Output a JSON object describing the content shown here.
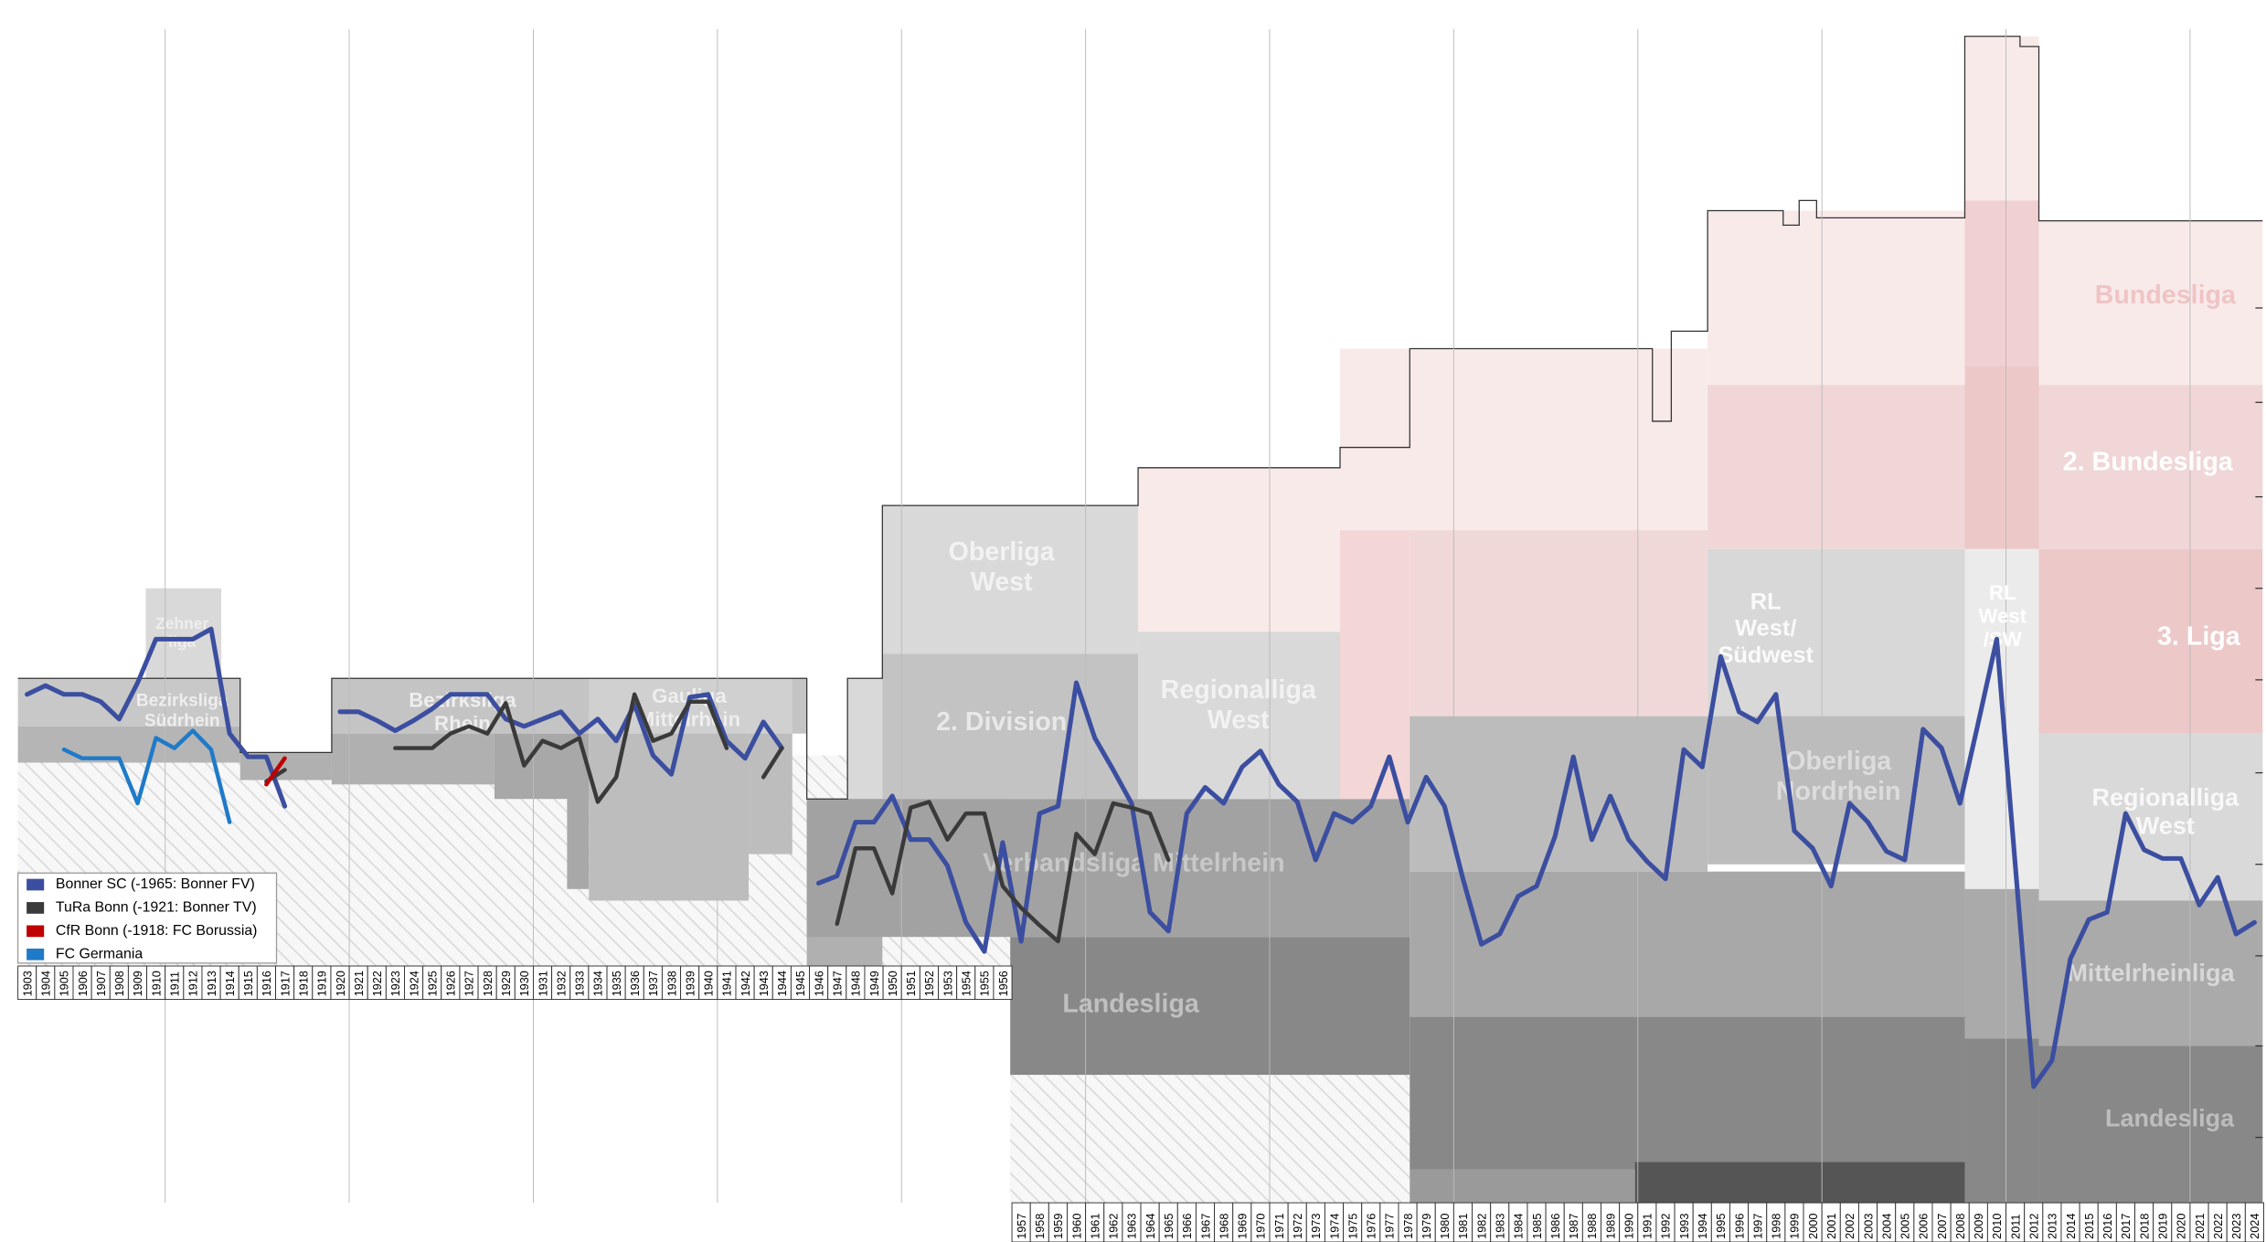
{
  "chart_data": {
    "type": "line",
    "categories": [
      "1903",
      "1904",
      "1905",
      "1906",
      "1907",
      "1908",
      "1909",
      "1910",
      "1911",
      "1912",
      "1913",
      "1914",
      "1915",
      "1916",
      "1917",
      "1918",
      "1919",
      "1920",
      "1921",
      "1922",
      "1923",
      "1924",
      "1925",
      "1926",
      "1927",
      "1928",
      "1929",
      "1930",
      "1931",
      "1932",
      "1933",
      "1934",
      "1935",
      "1936",
      "1937",
      "1938",
      "1939",
      "1940",
      "1941",
      "1942",
      "1943",
      "1944",
      "1945",
      "1946",
      "1947",
      "1948",
      "1949",
      "1950",
      "1951",
      "1952",
      "1953",
      "1954",
      "1955",
      "1956",
      "1957",
      "1958",
      "1959",
      "1960",
      "1961",
      "1962",
      "1963",
      "1964",
      "1965",
      "1966",
      "1967",
      "1968",
      "1969",
      "1970",
      "1971",
      "1972",
      "1973",
      "1974",
      "1975",
      "1976",
      "1977",
      "1978",
      "1979",
      "1980",
      "1981",
      "1982",
      "1983",
      "1984",
      "1985",
      "1986",
      "1987",
      "1988",
      "1989",
      "1990",
      "1991",
      "1992",
      "1993",
      "1994",
      "1995",
      "1996",
      "1997",
      "1998",
      "1999",
      "2000",
      "2001",
      "2002",
      "2003",
      "2004",
      "2005",
      "2006",
      "2007",
      "2008",
      "2009",
      "2010",
      "2011",
      "2012",
      "2013",
      "2014",
      "2015",
      "2016",
      "2017",
      "2018",
      "2019",
      "2020",
      "2021",
      "2022",
      "2023",
      "2024"
    ],
    "ylim": [
      855,
      0
    ],
    "yticks": [
      212,
      277,
      342,
      405,
      468,
      532,
      595,
      658,
      720,
      783
    ],
    "series": [
      {
        "name": "Bonner SC (-1965: Bonner FV)",
        "color": "#3b4ea0",
        "values": [
          478,
          472,
          478,
          478,
          483,
          495,
          470,
          440,
          440,
          440,
          433,
          505,
          521,
          521,
          555,
          null,
          null,
          490,
          490,
          496,
          503,
          496,
          488,
          478,
          478,
          478,
          495,
          500,
          495,
          490,
          505,
          495,
          510,
          485,
          520,
          533,
          480,
          478,
          510,
          522,
          497,
          515,
          null,
          608,
          603,
          566,
          566,
          548,
          578,
          578,
          596,
          635,
          655,
          580,
          648,
          560,
          555,
          470,
          508,
          530,
          553,
          628,
          641,
          560,
          542,
          553,
          528,
          517,
          540,
          552,
          592,
          560,
          566,
          555,
          521,
          566,
          535,
          555,
          605,
          650,
          643,
          617,
          610,
          576,
          521,
          578,
          548,
          578,
          593,
          605,
          516,
          528,
          452,
          490,
          497,
          478,
          572,
          584,
          610,
          553,
          566,
          586,
          592,
          502,
          515,
          553,
          497,
          440,
          595,
          748,
          730,
          660,
          633,
          628,
          560,
          585,
          591,
          591,
          623,
          604,
          643,
          635
        ]
      },
      {
        "name": "TuRa Bonn (-1921: Bonner TV)",
        "color": "#3a3a3a",
        "values": [
          null,
          null,
          null,
          null,
          null,
          null,
          null,
          null,
          null,
          null,
          null,
          null,
          null,
          538,
          530,
          null,
          null,
          null,
          null,
          null,
          515,
          515,
          515,
          505,
          500,
          505,
          484,
          527,
          510,
          515,
          508,
          552,
          535,
          478,
          510,
          505,
          483,
          483,
          515,
          null,
          535,
          515,
          null,
          null,
          636,
          584,
          584,
          615,
          556,
          552,
          578,
          560,
          560,
          610,
          625,
          637,
          648,
          574,
          588,
          553,
          556,
          560,
          592,
          null,
          null,
          null,
          null,
          null,
          null,
          null,
          null,
          null,
          null,
          null,
          null,
          null,
          null,
          null,
          null,
          null,
          null,
          null,
          null,
          null,
          null,
          null,
          null,
          null,
          null,
          null,
          null,
          null,
          null,
          null,
          null,
          null,
          null,
          null,
          null,
          null,
          null,
          null,
          null,
          null,
          null,
          null,
          null,
          null,
          null,
          null,
          null,
          null,
          null,
          null,
          null,
          null,
          null,
          null,
          null,
          null,
          null,
          null
        ]
      },
      {
        "name": "CfR Bonn (-1918: FC Borussia)",
        "color": "#c00000",
        "values": [
          null,
          null,
          null,
          null,
          null,
          null,
          null,
          null,
          null,
          null,
          null,
          null,
          null,
          540,
          522,
          null,
          null,
          null,
          null,
          null,
          null,
          null,
          null,
          null,
          null,
          null,
          null,
          null,
          null,
          null,
          null,
          null,
          null,
          null,
          null,
          null,
          null,
          null,
          null,
          null,
          null,
          null,
          null,
          null,
          null,
          null,
          null,
          null,
          null,
          null,
          null,
          null,
          null,
          null,
          null,
          null,
          null,
          null,
          null,
          null,
          null,
          null,
          null,
          null,
          null,
          null,
          null,
          null,
          null,
          null,
          null,
          null,
          null,
          null,
          null,
          null,
          null,
          null,
          null,
          null,
          null,
          null,
          null,
          null,
          null,
          null,
          null,
          null,
          null,
          null,
          null,
          null,
          null,
          null,
          null,
          null,
          null,
          null,
          null,
          null,
          null,
          null,
          null,
          null,
          null,
          null,
          null,
          null,
          null,
          null,
          null,
          null,
          null,
          null,
          null,
          null,
          null,
          null,
          null,
          null,
          null,
          null
        ]
      },
      {
        "name": "FC Germania",
        "color": "#1f7ac8",
        "values": [
          null,
          null,
          516,
          522,
          522,
          522,
          553,
          508,
          515,
          503,
          516,
          566,
          null,
          null,
          null,
          null,
          null,
          null,
          null,
          null,
          null,
          null,
          null,
          null,
          null,
          null,
          null,
          null,
          null,
          null,
          null,
          null,
          null,
          null,
          null,
          null,
          null,
          null,
          null,
          null,
          null,
          null,
          null,
          null,
          null,
          null,
          null,
          null,
          null,
          null,
          null,
          null,
          null,
          null,
          null,
          null,
          null,
          null,
          null,
          null,
          null,
          null,
          null,
          null,
          null,
          null,
          null,
          null,
          null,
          null,
          null,
          null,
          null,
          null,
          null,
          null,
          null,
          null,
          null,
          null,
          null,
          null,
          null,
          null,
          null,
          null,
          null,
          null,
          null,
          null,
          null,
          null,
          null,
          null,
          null,
          null,
          null,
          null,
          null,
          null,
          null,
          null,
          null,
          null,
          null,
          null,
          null,
          null,
          null,
          null,
          null,
          null,
          null,
          null,
          null,
          null,
          null,
          null,
          null,
          null,
          null,
          null
        ]
      }
    ],
    "league_labels": [
      {
        "lines": [
          "Zehner",
          "liga"
        ]
      },
      {
        "lines": [
          "Bezirksliga",
          "Südrhein"
        ]
      },
      {
        "lines": [
          "Bezirksliga",
          "Rhein"
        ]
      },
      {
        "lines": [
          "Gauliga",
          "Mittelrhein"
        ]
      },
      {
        "lines": [
          "Oberliga",
          "West"
        ]
      },
      {
        "lines": [
          "2. Division"
        ]
      },
      {
        "lines": [
          "Verbandsliga Mittelrhein"
        ]
      },
      {
        "lines": [
          "Landesliga"
        ]
      },
      {
        "lines": [
          "Regionalliga",
          "West"
        ]
      },
      {
        "lines": [
          "Oberliga",
          "Nordrhein"
        ]
      },
      {
        "lines": [
          "RL",
          "West/",
          "Südwest"
        ]
      },
      {
        "lines": [
          "RL",
          "West",
          "/SW"
        ]
      },
      {
        "lines": [
          "Bundesliga"
        ]
      },
      {
        "lines": [
          "2. Bundesliga"
        ]
      },
      {
        "lines": [
          "3. Liga"
        ]
      },
      {
        "lines": [
          "Regionalliga",
          "West"
        ]
      },
      {
        "lines": [
          "Mittelrheinliga"
        ]
      },
      {
        "lines": [
          "Landesliga"
        ]
      }
    ]
  }
}
